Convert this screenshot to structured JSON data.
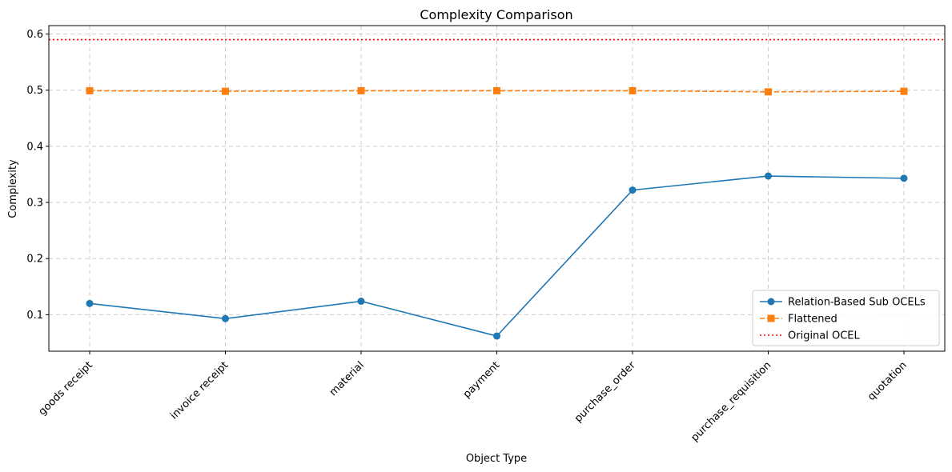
{
  "chart_data": {
    "type": "line",
    "title": "Complexity Comparison",
    "xlabel": "Object Type",
    "ylabel": "Complexity",
    "categories": [
      "goods receipt",
      "invoice receipt",
      "material",
      "payment",
      "purchase_order",
      "purchase_requisition",
      "quotation"
    ],
    "ylim": [
      0.035,
      0.615
    ],
    "yticks": [
      0.1,
      0.2,
      0.3,
      0.4,
      0.5,
      0.6
    ],
    "grid": true,
    "legend_position": "lower-right",
    "series": [
      {
        "name": "Relation-Based Sub OCELs",
        "values": [
          0.12,
          0.093,
          0.124,
          0.062,
          0.322,
          0.347,
          0.343
        ],
        "color": "#1f77b4",
        "style": "solid",
        "marker": "circle"
      },
      {
        "name": "Flattened",
        "values": [
          0.499,
          0.498,
          0.499,
          0.499,
          0.499,
          0.497,
          0.498
        ],
        "color": "#ff7f0e",
        "style": "dashed",
        "marker": "square"
      }
    ],
    "reference_lines": [
      {
        "name": "Original OCEL",
        "y": 0.59,
        "color": "#ff0000",
        "style": "dotted"
      }
    ]
  }
}
